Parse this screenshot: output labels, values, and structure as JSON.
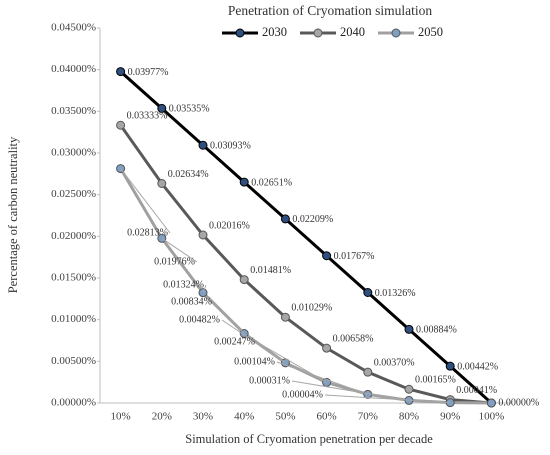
{
  "chart_data": {
    "type": "line",
    "title": "Penetration of Cryomation simulation",
    "x_label": "Simulation of Cryomation penetration per decade",
    "y_label": "Percentage of carbon neutrality",
    "categories": [
      "10%",
      "20%",
      "30%",
      "40%",
      "50%",
      "60%",
      "70%",
      "80%",
      "90%",
      "100%"
    ],
    "series": [
      {
        "name": "2030",
        "color": "#000000",
        "marker_color": "#2f4f7f",
        "values": [
          0.03977,
          0.03535,
          0.03093,
          0.02651,
          0.02209,
          0.01767,
          0.01326,
          0.00884,
          0.00442,
          0.0
        ],
        "value_labels": [
          "0.03977%",
          "0.03535%",
          "0.03093%",
          "0.02651%",
          "0.02209%",
          "0.01767%",
          "0.01326%",
          "0.00884%",
          "0.00442%",
          "0.00000%"
        ]
      },
      {
        "name": "2040",
        "color": "#595959",
        "marker_color": "#a6a6a6",
        "values": [
          0.03333,
          0.02634,
          0.02016,
          0.01481,
          0.01029,
          0.00658,
          0.0037,
          0.00165,
          0.00041,
          0.0
        ],
        "value_labels": [
          "0.03333%",
          "0.02634%",
          "0.02016%",
          "0.01481%",
          "0.01029%",
          "0.00658%",
          "0.00370%",
          "0.00165%",
          "0.00041%",
          null
        ]
      },
      {
        "name": "2050",
        "color": "#a0a0a0",
        "marker_color": "#7f9fc4",
        "values": [
          0.02813,
          0.01976,
          0.01324,
          0.00834,
          0.00482,
          0.00247,
          0.00104,
          0.00031,
          4e-05,
          0.0
        ],
        "value_labels": [
          "0.02813%",
          "0.01976%",
          "0.01324%",
          "0.00834%",
          "0.00482%",
          "0.00247%",
          "0.00104%",
          "0.00031%",
          "0.00004%",
          null
        ]
      }
    ],
    "ylim": [
      0,
      0.045
    ],
    "yticks": [
      {
        "value": 0,
        "label": "0.00000%"
      },
      {
        "value": 0.005,
        "label": "0.00500%"
      },
      {
        "value": 0.01,
        "label": "0.01000%"
      },
      {
        "value": 0.015,
        "label": "0.01500%"
      },
      {
        "value": 0.02,
        "label": "0.02000%"
      },
      {
        "value": 0.025,
        "label": "0.02500%"
      },
      {
        "value": 0.03,
        "label": "0.03000%"
      },
      {
        "value": 0.035,
        "label": "0.03500%"
      },
      {
        "value": 0.04,
        "label": "0.04000%"
      },
      {
        "value": 0.045,
        "label": "0.04500%"
      }
    ],
    "grid": false,
    "legend": "top"
  }
}
